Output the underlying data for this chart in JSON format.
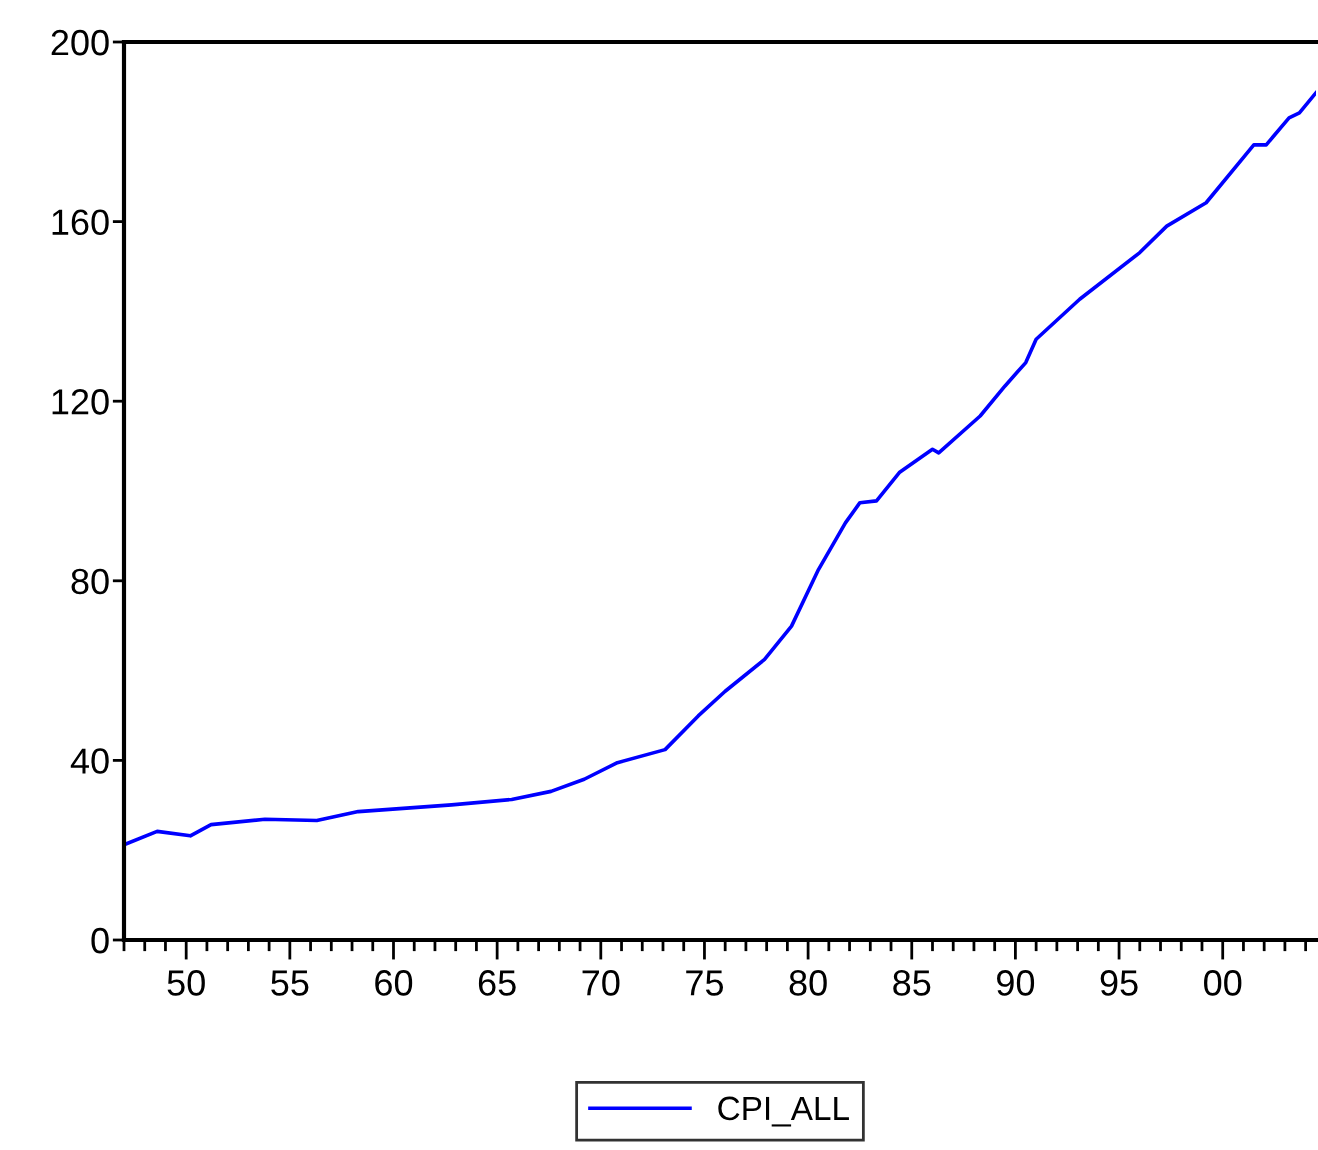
{
  "chart_data": {
    "type": "line",
    "x": [
      1947.0,
      1948.6,
      1950.2,
      1951.2,
      1953.8,
      1956.3,
      1958.3,
      1962.8,
      1965.7,
      1967.6,
      1969.2,
      1970.8,
      1973.1,
      1974.7,
      1976.0,
      1977.9,
      1979.2,
      1980.5,
      1981.8,
      1982.5,
      1983.3,
      1984.4,
      1986.0,
      1986.3,
      1988.3,
      1989.5,
      1990.5,
      1991.0,
      1993.1,
      1996.0,
      1997.3,
      1999.2,
      2001.5,
      2002.1,
      2003.2,
      2003.7,
      2004.5
    ],
    "series": [
      {
        "name": "CPI_ALL",
        "color": "#0000ff",
        "values": [
          21.2,
          24.2,
          23.2,
          25.7,
          26.9,
          26.6,
          28.6,
          30.1,
          31.3,
          33.1,
          35.8,
          39.5,
          42.4,
          49.9,
          55.4,
          62.5,
          69.9,
          82.5,
          92.9,
          97.4,
          97.8,
          104.1,
          109.3,
          108.5,
          116.7,
          123.4,
          128.6,
          133.8,
          142.7,
          153.1,
          159.0,
          164.2,
          177.1,
          177.1,
          183.1,
          184.2,
          188.7
        ]
      }
    ],
    "xlim": [
      1947,
      2004.5
    ],
    "xticks": [
      {
        "value": 1947,
        "label": null
      },
      {
        "value": 1948,
        "label": null
      },
      {
        "value": 1949,
        "label": null
      },
      {
        "value": 1950,
        "label": "50"
      },
      {
        "value": 1951,
        "label": null
      },
      {
        "value": 1952,
        "label": null
      },
      {
        "value": 1953,
        "label": null
      },
      {
        "value": 1954,
        "label": null
      },
      {
        "value": 1955,
        "label": "55"
      },
      {
        "value": 1956,
        "label": null
      },
      {
        "value": 1957,
        "label": null
      },
      {
        "value": 1958,
        "label": null
      },
      {
        "value": 1959,
        "label": null
      },
      {
        "value": 1960,
        "label": "60"
      },
      {
        "value": 1961,
        "label": null
      },
      {
        "value": 1962,
        "label": null
      },
      {
        "value": 1963,
        "label": null
      },
      {
        "value": 1964,
        "label": null
      },
      {
        "value": 1965,
        "label": "65"
      },
      {
        "value": 1966,
        "label": null
      },
      {
        "value": 1967,
        "label": null
      },
      {
        "value": 1968,
        "label": null
      },
      {
        "value": 1969,
        "label": null
      },
      {
        "value": 1970,
        "label": "70"
      },
      {
        "value": 1971,
        "label": null
      },
      {
        "value": 1972,
        "label": null
      },
      {
        "value": 1973,
        "label": null
      },
      {
        "value": 1974,
        "label": null
      },
      {
        "value": 1975,
        "label": "75"
      },
      {
        "value": 1976,
        "label": null
      },
      {
        "value": 1977,
        "label": null
      },
      {
        "value": 1978,
        "label": null
      },
      {
        "value": 1979,
        "label": null
      },
      {
        "value": 1980,
        "label": "80"
      },
      {
        "value": 1981,
        "label": null
      },
      {
        "value": 1982,
        "label": null
      },
      {
        "value": 1983,
        "label": null
      },
      {
        "value": 1984,
        "label": null
      },
      {
        "value": 1985,
        "label": "85"
      },
      {
        "value": 1986,
        "label": null
      },
      {
        "value": 1987,
        "label": null
      },
      {
        "value": 1988,
        "label": null
      },
      {
        "value": 1989,
        "label": null
      },
      {
        "value": 1990,
        "label": "90"
      },
      {
        "value": 1991,
        "label": null
      },
      {
        "value": 1992,
        "label": null
      },
      {
        "value": 1993,
        "label": null
      },
      {
        "value": 1994,
        "label": null
      },
      {
        "value": 1995,
        "label": "95"
      },
      {
        "value": 1996,
        "label": null
      },
      {
        "value": 1997,
        "label": null
      },
      {
        "value": 1998,
        "label": null
      },
      {
        "value": 1999,
        "label": null
      },
      {
        "value": 2000,
        "label": "00"
      },
      {
        "value": 2001,
        "label": null
      },
      {
        "value": 2002,
        "label": null
      },
      {
        "value": 2003,
        "label": null
      },
      {
        "value": 2004,
        "label": null
      }
    ],
    "ylim": [
      0,
      200
    ],
    "yticks": [
      0,
      40,
      80,
      120,
      160,
      200
    ],
    "legend": "bottom",
    "grid": false,
    "line_style": "solid"
  }
}
